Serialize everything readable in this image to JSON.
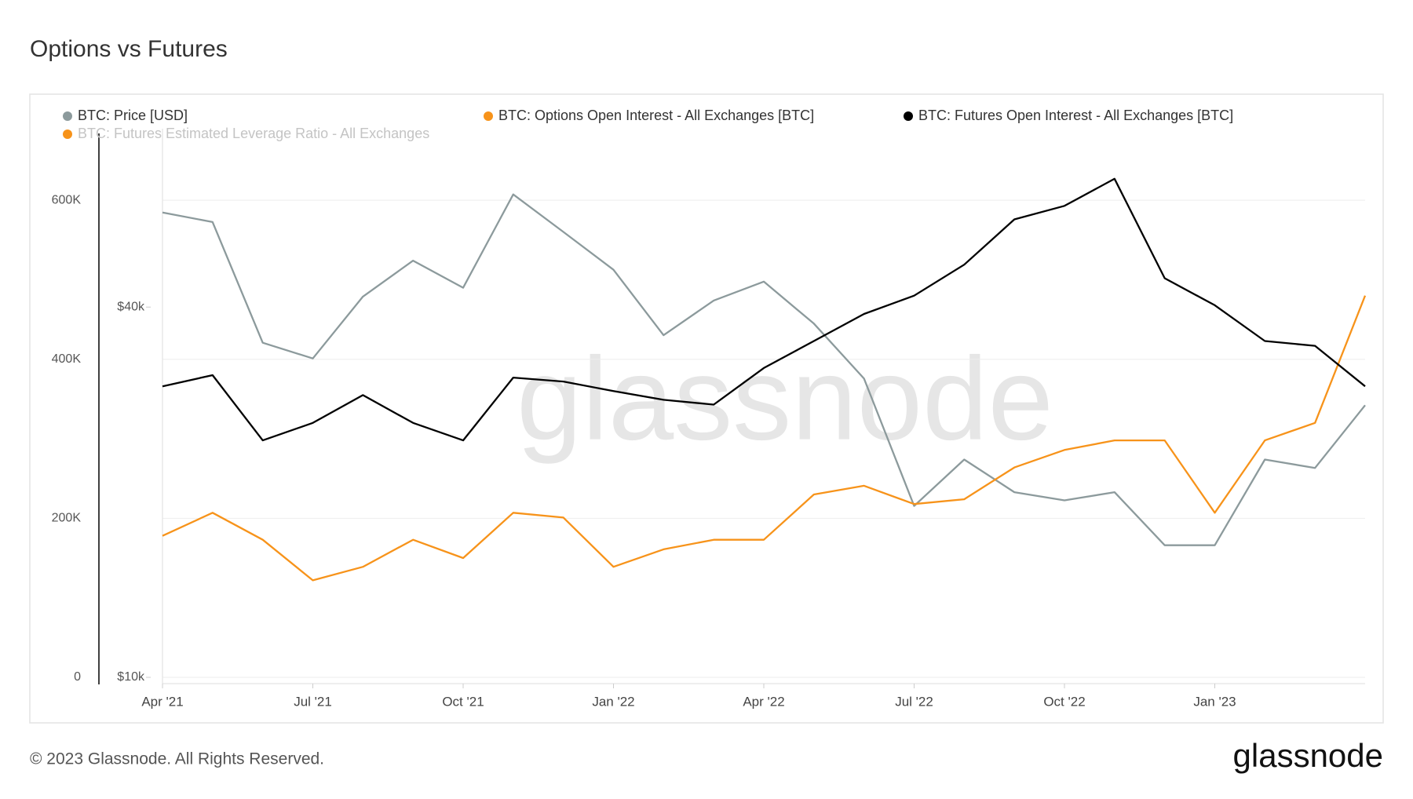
{
  "chart_data": {
    "type": "line",
    "title": "Options vs Futures",
    "x": [
      "2021-04",
      "2021-05",
      "2021-06",
      "2021-07",
      "2021-08",
      "2021-09",
      "2021-10",
      "2021-11",
      "2021-12",
      "2022-01",
      "2022-02",
      "2022-03",
      "2022-04",
      "2022-05",
      "2022-06",
      "2022-07",
      "2022-08",
      "2022-09",
      "2022-10",
      "2022-11",
      "2022-12",
      "2023-01",
      "2023-02",
      "2023-03",
      "2023-04"
    ],
    "xlim": [
      "2021-04",
      "2023-04"
    ],
    "xticks": [
      {
        "value": "2021-04",
        "label": "Apr '21"
      },
      {
        "value": "2021-07",
        "label": "Jul '21"
      },
      {
        "value": "2021-10",
        "label": "Oct '21"
      },
      {
        "value": "2022-01",
        "label": "Jan '22"
      },
      {
        "value": "2022-04",
        "label": "Apr '22"
      },
      {
        "value": "2022-07",
        "label": "Jul '22"
      },
      {
        "value": "2022-10",
        "label": "Oct '22"
      },
      {
        "value": "2023-01",
        "label": "Jan '23"
      }
    ],
    "ylim": [
      0,
      690000
    ],
    "yticks": [
      0,
      {
        "value": 200000,
        "label": "200K"
      },
      {
        "value": 400000,
        "label": "400K"
      },
      {
        "value": 600000,
        "label": "600K"
      }
    ],
    "y2lim": [
      10000,
      78000
    ],
    "y2scale": "log",
    "y2ticks": [
      {
        "value": 10000,
        "label": "$10k"
      },
      {
        "value": 40000,
        "label": "$40k"
      }
    ],
    "grid": true,
    "series": [
      {
        "name": "BTC: Price [USD]",
        "color": "#8c9a9c",
        "axis": "y2",
        "values": [
          57000,
          55000,
          35000,
          33000,
          41600,
          47600,
          43000,
          61000,
          53000,
          46000,
          36000,
          41000,
          44000,
          37600,
          30600,
          19000,
          22600,
          20000,
          19400,
          20000,
          16400,
          16400,
          22600,
          21900,
          27700
        ]
      },
      {
        "name": "BTC: Options Open Interest - All Exchanges [BTC]",
        "color": "#f7931a",
        "values": [
          178000,
          207000,
          173000,
          122000,
          139000,
          173000,
          150000,
          207000,
          201000,
          139000,
          161000,
          173000,
          173000,
          230000,
          241000,
          218000,
          224000,
          264000,
          286000,
          298000,
          298000,
          207000,
          298000,
          320000,
          480000
        ]
      },
      {
        "name": "BTC: Futures Open Interest - All Exchanges [BTC]",
        "color": "#000000",
        "values": [
          366000,
          380000,
          298000,
          320000,
          355000,
          320000,
          298000,
          377000,
          372000,
          360000,
          349000,
          343000,
          389000,
          423000,
          457000,
          480000,
          519000,
          576000,
          593000,
          627000,
          502000,
          468000,
          423000,
          417000,
          366000
        ]
      }
    ],
    "hidden_series": [
      {
        "name": "BTC: Futures Estimated Leverage Ratio - All Exchanges",
        "color": "#f7931a"
      }
    ],
    "watermark": "glassnode",
    "footer": "© 2023 Glassnode. All Rights Reserved.",
    "brand": "glassnode"
  }
}
